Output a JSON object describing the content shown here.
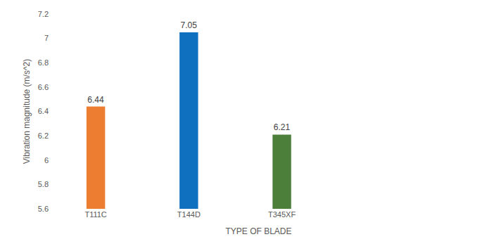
{
  "chart_data": {
    "type": "bar",
    "x_label": "TYPE OF BLADE",
    "y_label": "Vibration magnitude (m/s^2)",
    "categories": [
      "T111C",
      "T144D",
      "T345XF"
    ],
    "values": [
      6.44,
      7.05,
      6.21
    ],
    "colors": [
      "#ed7d31",
      "#1070c0",
      "#4c7f3a"
    ],
    "ylim": [
      5.6,
      7.2
    ],
    "yticks": [
      5.6,
      5.8,
      6,
      6.2,
      6.4,
      6.6,
      6.8,
      7,
      7.2
    ],
    "grid": false,
    "data_labels": true
  }
}
